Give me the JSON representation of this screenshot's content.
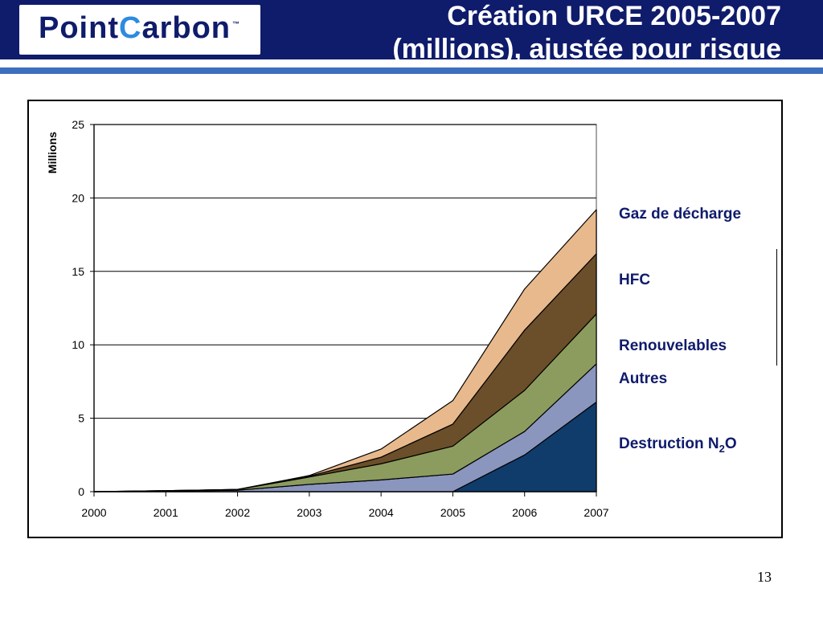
{
  "slide": {
    "title_line1": "Création URCE 2005-2007",
    "title_line2": "(millions), ajustée pour risque",
    "logo_part1": "Point",
    "logo_part2": "C",
    "logo_part3": "arbon",
    "logo_tm": "™",
    "page_number": "13"
  },
  "colors": {
    "header": "#0f1b6b",
    "accent_line": "#3d6fbe",
    "legend_text": "#0f1b6b"
  },
  "chart_data": {
    "type": "area",
    "stacked": true,
    "title": "",
    "xlabel": "",
    "ylabel": "Millions",
    "x": [
      2000,
      2001,
      2002,
      2003,
      2004,
      2005,
      2006,
      2007
    ],
    "ylim": [
      0,
      25
    ],
    "yticks": [
      0,
      5,
      10,
      15,
      20,
      25
    ],
    "grid": true,
    "legend_position": "right",
    "series": [
      {
        "name": "Destruction N2O",
        "label_main": "Destruction N",
        "label_sub": "2",
        "label_end": "O",
        "color": "#0f3c6b",
        "values": [
          0,
          0,
          0,
          0,
          0,
          0,
          2.5,
          6.1
        ]
      },
      {
        "name": "Autres",
        "color": "#8b96bf",
        "values": [
          0,
          0.05,
          0.1,
          0.5,
          0.8,
          1.2,
          1.6,
          2.6
        ]
      },
      {
        "name": "Renouvelables",
        "color": "#8c9c5e",
        "values": [
          0,
          0.02,
          0.05,
          0.5,
          1.1,
          1.9,
          2.8,
          3.4
        ]
      },
      {
        "name": "HFC",
        "color": "#6b4e2a",
        "values": [
          0,
          0,
          0,
          0.05,
          0.45,
          1.5,
          4.1,
          4.1
        ]
      },
      {
        "name": "Gaz de décharge",
        "color": "#e8b98c",
        "values": [
          0,
          0,
          0,
          0.05,
          0.55,
          1.6,
          2.8,
          3.0
        ]
      }
    ]
  }
}
